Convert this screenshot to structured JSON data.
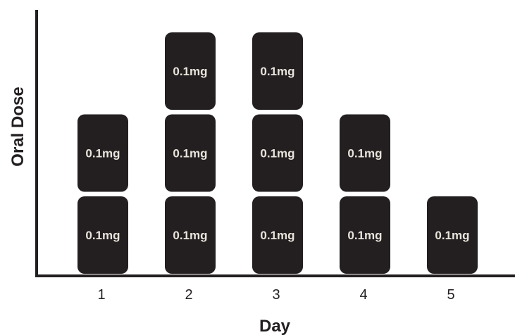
{
  "chart_data": {
    "type": "bar",
    "title": "",
    "xlabel": "Day",
    "ylabel": "Oral Dose",
    "categories": [
      "1",
      "2",
      "3",
      "4",
      "5"
    ],
    "values": [
      2,
      3,
      3,
      2,
      1
    ],
    "unit_label": "0.1mg",
    "ylim": [
      0,
      3
    ],
    "grid": false,
    "legend": "none"
  },
  "colors": {
    "pill": "#231f20",
    "pill_text": "#e8e4dc",
    "axis": "#231f20",
    "background": "#ffffff"
  }
}
